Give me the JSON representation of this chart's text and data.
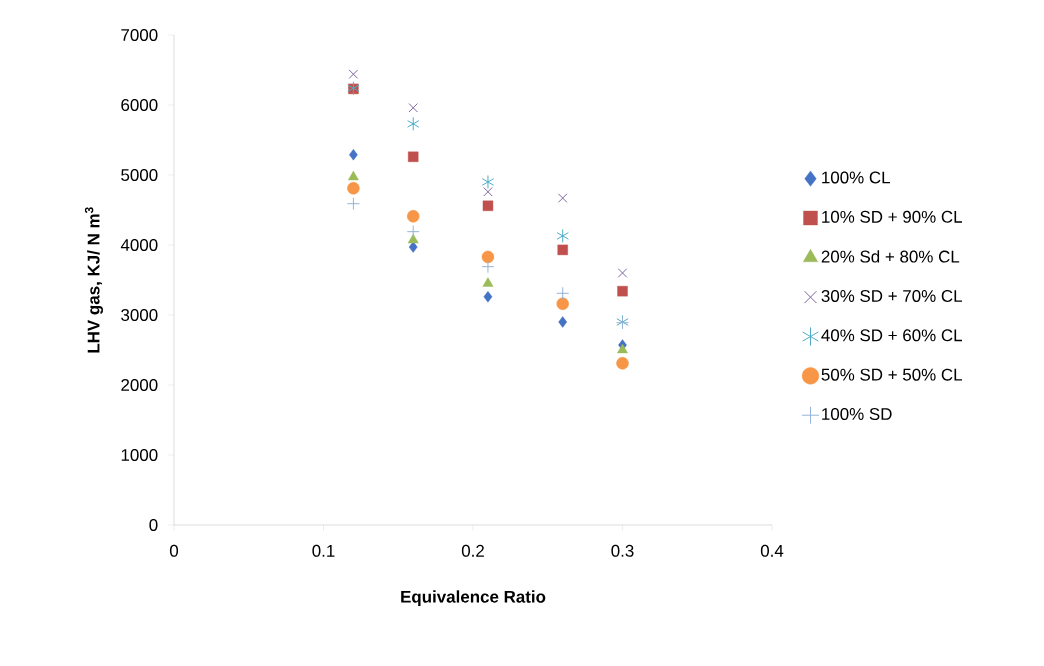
{
  "chart_data": {
    "type": "scatter",
    "xlabel": "Equivalence Ratio",
    "ylabel": "LHV gas, KJ/ N m$^{3}$",
    "x": [
      0.12,
      0.16,
      0.21,
      0.26,
      0.3
    ],
    "series": [
      {
        "name": "100% CL",
        "color": "#4472c4",
        "marker": "diamond",
        "values": [
          5290,
          3970,
          3260,
          2900,
          2570
        ]
      },
      {
        "name": "10% SD + 90% CL",
        "color": "#c0504d",
        "marker": "square",
        "values": [
          6230,
          5260,
          4560,
          3930,
          3340
        ]
      },
      {
        "name": "20% Sd + 80% CL",
        "color": "#9bbb59",
        "marker": "triangle",
        "values": [
          4970,
          4070,
          3450,
          null,
          2500
        ]
      },
      {
        "name": "30% SD + 70% CL",
        "color": "#8064a2",
        "marker": "cross",
        "values": [
          6440,
          5960,
          4760,
          4670,
          3600
        ]
      },
      {
        "name": "40% SD +  60% CL",
        "color": "#4bacc6",
        "values": [
          6240,
          5730,
          4900,
          4130,
          2900
        ]
      },
      {
        "name": "50% SD + 50% CL",
        "color": "#f79646",
        "marker": "circle",
        "values": [
          4810,
          4410,
          3830,
          3160,
          2310
        ]
      },
      {
        "name": "100% SD",
        "color": "#95b3d7",
        "values": [
          4590,
          4190,
          3690,
          3310,
          2890
        ]
      }
    ],
    "xlim": [
      0,
      0.4
    ],
    "xticks": [
      0,
      0.1,
      0.2,
      0.3,
      0.4
    ],
    "ylim": [
      0,
      7000
    ],
    "yticks": [
      0,
      1000,
      2000,
      3000,
      4000,
      5000,
      6000,
      7000
    ],
    "grid": false,
    "legend": "right"
  }
}
